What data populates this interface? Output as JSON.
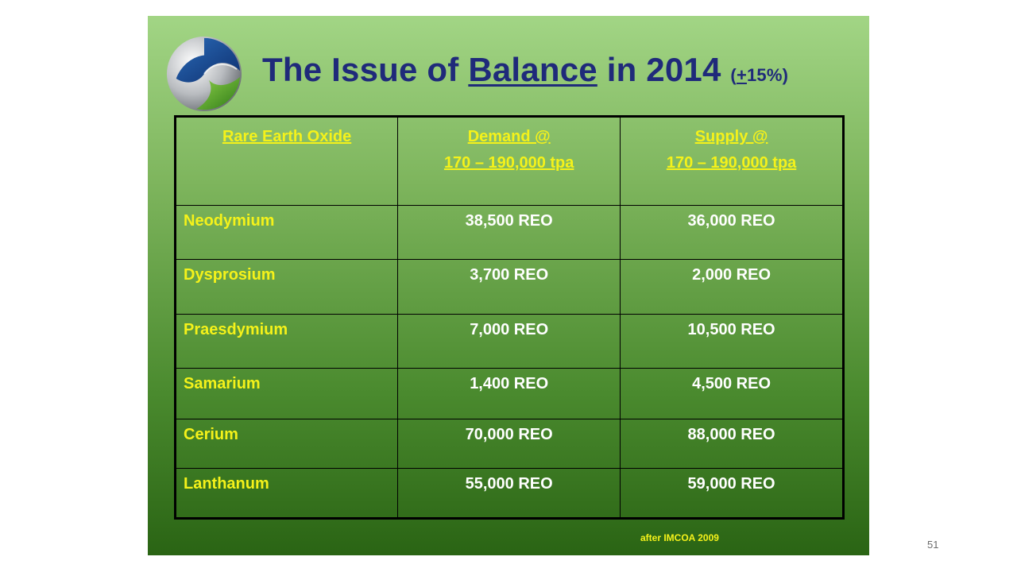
{
  "slide": {
    "title": {
      "prefix": "The Issue of ",
      "emphasis": "Balance",
      "suffix": " in 2014 ",
      "note_open": "(",
      "note_plus": "+",
      "note_rest": "15%)"
    },
    "table": {
      "headers": {
        "col1": "Rare Earth Oxide",
        "col2_line1": "Demand @",
        "col2_line2": "170 – 190,000 tpa",
        "col3_line1": "Supply @",
        "col3_line2": "170 – 190,000 tpa"
      },
      "rows": [
        {
          "oxide": "Neodymium",
          "demand": "38,500 REO",
          "supply": "36,000 REO"
        },
        {
          "oxide": "Dysprosium",
          "demand": "3,700 REO",
          "supply": "2,000 REO"
        },
        {
          "oxide": "Praesdymium",
          "demand": "7,000 REO",
          "supply": "10,500 REO"
        },
        {
          "oxide": "Samarium",
          "demand": "1,400 REO",
          "supply": "4,500 REO"
        },
        {
          "oxide": "Cerium",
          "demand": "70,000 REO",
          "supply": "88,000 REO"
        },
        {
          "oxide": "Lanthanum",
          "demand": "55,000 REO",
          "supply": "59,000 REO"
        }
      ]
    },
    "source": "after IMCOA 2009"
  },
  "page_number": "51",
  "colors": {
    "title": "#1f2a7a",
    "label_yellow": "#f5f21a",
    "value_white": "#ffffff",
    "background_top": "#a2d585",
    "background_bottom": "#2a6414"
  },
  "icons": {
    "logo": "swirl-logo-icon"
  }
}
